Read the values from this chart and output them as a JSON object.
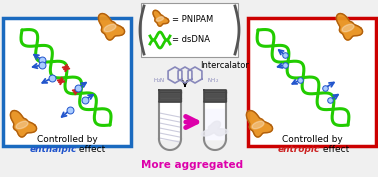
{
  "bg_color": "#f0f0f0",
  "left_box_color": "#1a6abf",
  "right_box_color": "#cc0000",
  "dna_green": "#22cc00",
  "dna_red_bar": "#dd2222",
  "dna_black_bar": "#111111",
  "pnipam_color": "#e8921e",
  "pnipam_edge": "#b06010",
  "arrow_magenta": "#dd00aa",
  "blue_arrow_color": "#2255cc",
  "red_arrow_color": "#cc2222",
  "label_blue": "#2255cc",
  "label_red": "#cc2222",
  "label_magenta": "#dd00aa",
  "legend_bracket": "#555555",
  "tube_cap_color": "#444444",
  "tube_wall_color": "#888888",
  "tube_fill_left": "#e8e8f8",
  "tube_fill_right": "#f0f0f8",
  "left_label_line1": "Controlled by",
  "left_label_line2": "enthalpic",
  "left_label_line3": " effect",
  "right_label_line1": "Controlled by",
  "right_label_line2": "entropic",
  "right_label_line3": " effect",
  "more_aggregated": "More aggregated",
  "pnipam_text": "= PNIPAM",
  "dsdna_text": "= dsDNA",
  "intercalator_text": "Intercalator"
}
